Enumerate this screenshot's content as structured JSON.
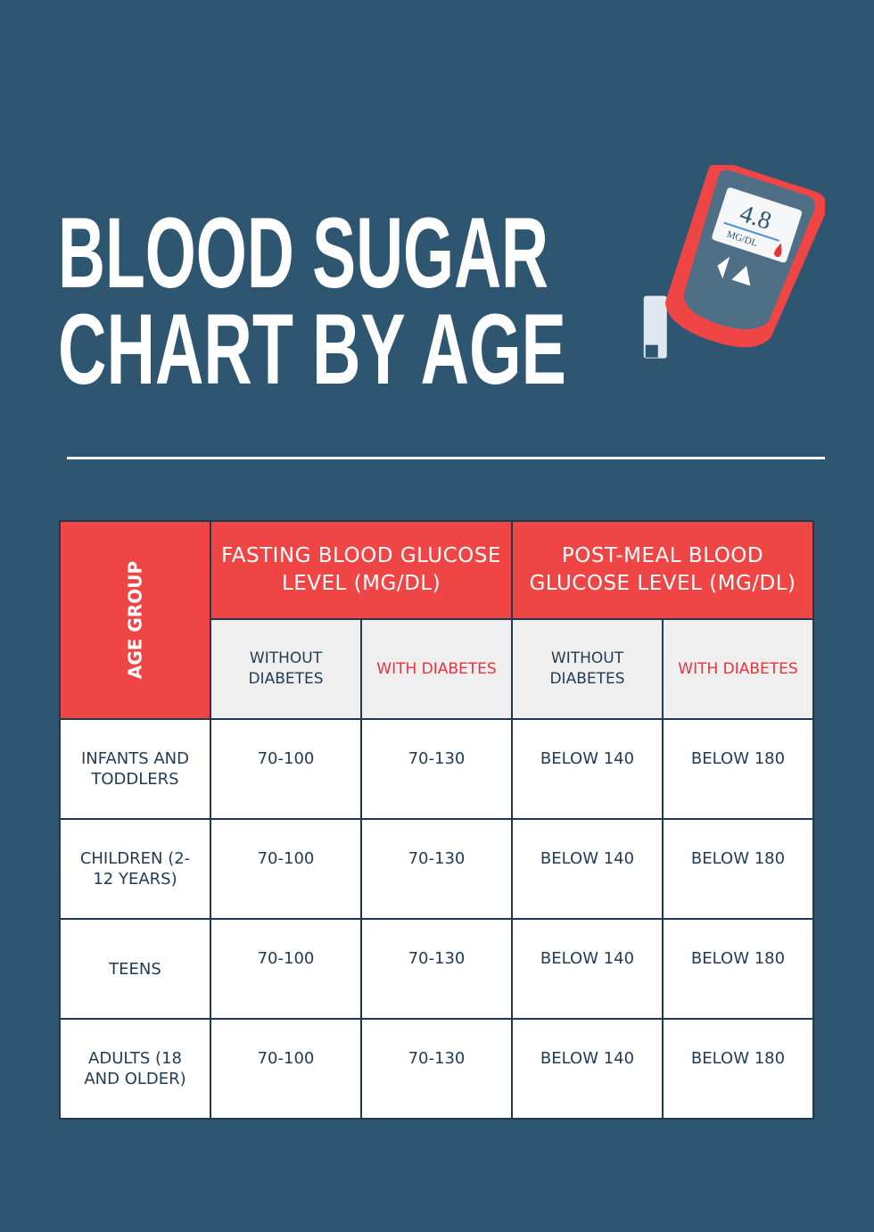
{
  "header": {
    "title": [
      "BLOOD SUGAR",
      "CHART BY AGE"
    ]
  },
  "meter": {
    "reading": "4.8",
    "unit": "MG/DL"
  },
  "table": {
    "age_header": "AGE GROUP",
    "group_headers": [
      "FASTING BLOOD GLUCOSE LEVEL (MG/DL)",
      "POST-MEAL BLOOD GLUCOSE LEVEL (MG/DL)"
    ],
    "sub_headers": [
      "WITHOUT DIABETES",
      "WITH DIABETES",
      "WITHOUT DIABETES",
      "WITH DIABETES"
    ],
    "rows": [
      [
        "INFANTS AND TODDLERS",
        "70-100",
        "70-130",
        "BELOW 140",
        "BELOW 180"
      ],
      [
        "CHILDREN (2-12 YEARS)",
        "70-100",
        "70-130",
        "BELOW 140",
        "BELOW 180"
      ],
      [
        "TEENS",
        "70-100",
        "70-130",
        "BELOW 140",
        "BELOW 180"
      ],
      [
        "ADULTS (18 AND OLDER)",
        "70-100",
        "70-130",
        "BELOW 140",
        "BELOW 180"
      ]
    ]
  }
}
